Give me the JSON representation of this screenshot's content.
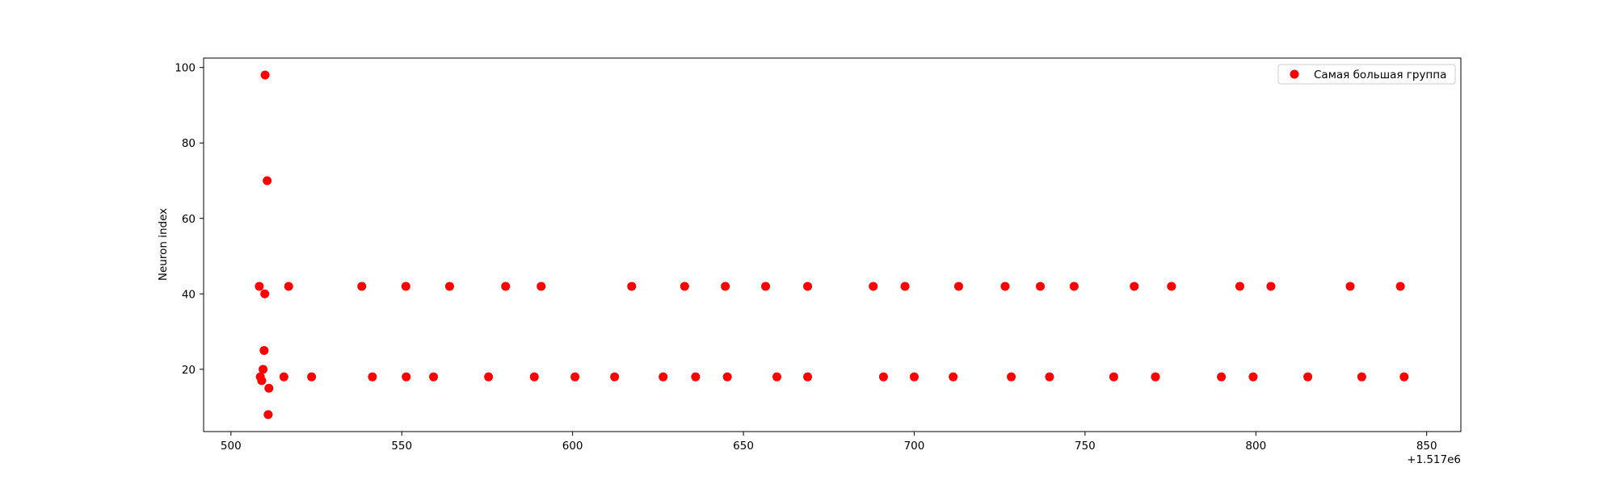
{
  "chart_data": {
    "type": "scatter",
    "title": "",
    "xlabel": "",
    "ylabel": "Neuron index",
    "x_offset_label": "+1.517e6",
    "xlim": [
      492,
      860
    ],
    "ylim": [
      3.5,
      102.5
    ],
    "x_ticks": [
      500,
      550,
      600,
      650,
      700,
      750,
      800,
      850
    ],
    "y_ticks": [
      20,
      40,
      60,
      80,
      100
    ],
    "grid": false,
    "legend_position": "top-right",
    "series": [
      {
        "name": "Самая большая группа",
        "color": "#ff0000",
        "marker": "circle",
        "points": [
          {
            "x": 508.3,
            "y": 42
          },
          {
            "x": 508.6,
            "y": 18
          },
          {
            "x": 509.0,
            "y": 17
          },
          {
            "x": 509.4,
            "y": 20
          },
          {
            "x": 509.7,
            "y": 25
          },
          {
            "x": 509.9,
            "y": 40
          },
          {
            "x": 510.0,
            "y": 98
          },
          {
            "x": 510.6,
            "y": 70
          },
          {
            "x": 510.9,
            "y": 8
          },
          {
            "x": 511.1,
            "y": 15
          },
          {
            "x": 515.5,
            "y": 18
          },
          {
            "x": 516.9,
            "y": 42
          },
          {
            "x": 523.6,
            "y": 18
          },
          {
            "x": 538.3,
            "y": 42
          },
          {
            "x": 541.4,
            "y": 18
          },
          {
            "x": 551.2,
            "y": 42
          },
          {
            "x": 551.3,
            "y": 18
          },
          {
            "x": 559.3,
            "y": 18
          },
          {
            "x": 564.0,
            "y": 42
          },
          {
            "x": 575.4,
            "y": 18
          },
          {
            "x": 580.4,
            "y": 42
          },
          {
            "x": 588.8,
            "y": 18
          },
          {
            "x": 590.8,
            "y": 42
          },
          {
            "x": 600.7,
            "y": 18
          },
          {
            "x": 612.3,
            "y": 18
          },
          {
            "x": 617.3,
            "y": 42
          },
          {
            "x": 626.5,
            "y": 18
          },
          {
            "x": 632.8,
            "y": 42
          },
          {
            "x": 636.0,
            "y": 18
          },
          {
            "x": 644.7,
            "y": 42
          },
          {
            "x": 645.3,
            "y": 18
          },
          {
            "x": 656.5,
            "y": 42
          },
          {
            "x": 659.8,
            "y": 18
          },
          {
            "x": 668.8,
            "y": 42
          },
          {
            "x": 668.8,
            "y": 18
          },
          {
            "x": 688.0,
            "y": 42
          },
          {
            "x": 691.0,
            "y": 18
          },
          {
            "x": 697.3,
            "y": 42
          },
          {
            "x": 700.0,
            "y": 18
          },
          {
            "x": 711.4,
            "y": 18
          },
          {
            "x": 713.0,
            "y": 42
          },
          {
            "x": 726.6,
            "y": 42
          },
          {
            "x": 728.4,
            "y": 18
          },
          {
            "x": 736.9,
            "y": 42
          },
          {
            "x": 739.6,
            "y": 18
          },
          {
            "x": 746.8,
            "y": 42
          },
          {
            "x": 758.4,
            "y": 18
          },
          {
            "x": 764.4,
            "y": 42
          },
          {
            "x": 770.6,
            "y": 18
          },
          {
            "x": 775.3,
            "y": 42
          },
          {
            "x": 789.9,
            "y": 18
          },
          {
            "x": 795.3,
            "y": 42
          },
          {
            "x": 799.2,
            "y": 18
          },
          {
            "x": 804.4,
            "y": 42
          },
          {
            "x": 815.2,
            "y": 18
          },
          {
            "x": 827.6,
            "y": 42
          },
          {
            "x": 831.0,
            "y": 18
          },
          {
            "x": 842.3,
            "y": 42
          },
          {
            "x": 843.4,
            "y": 18
          }
        ]
      }
    ]
  }
}
